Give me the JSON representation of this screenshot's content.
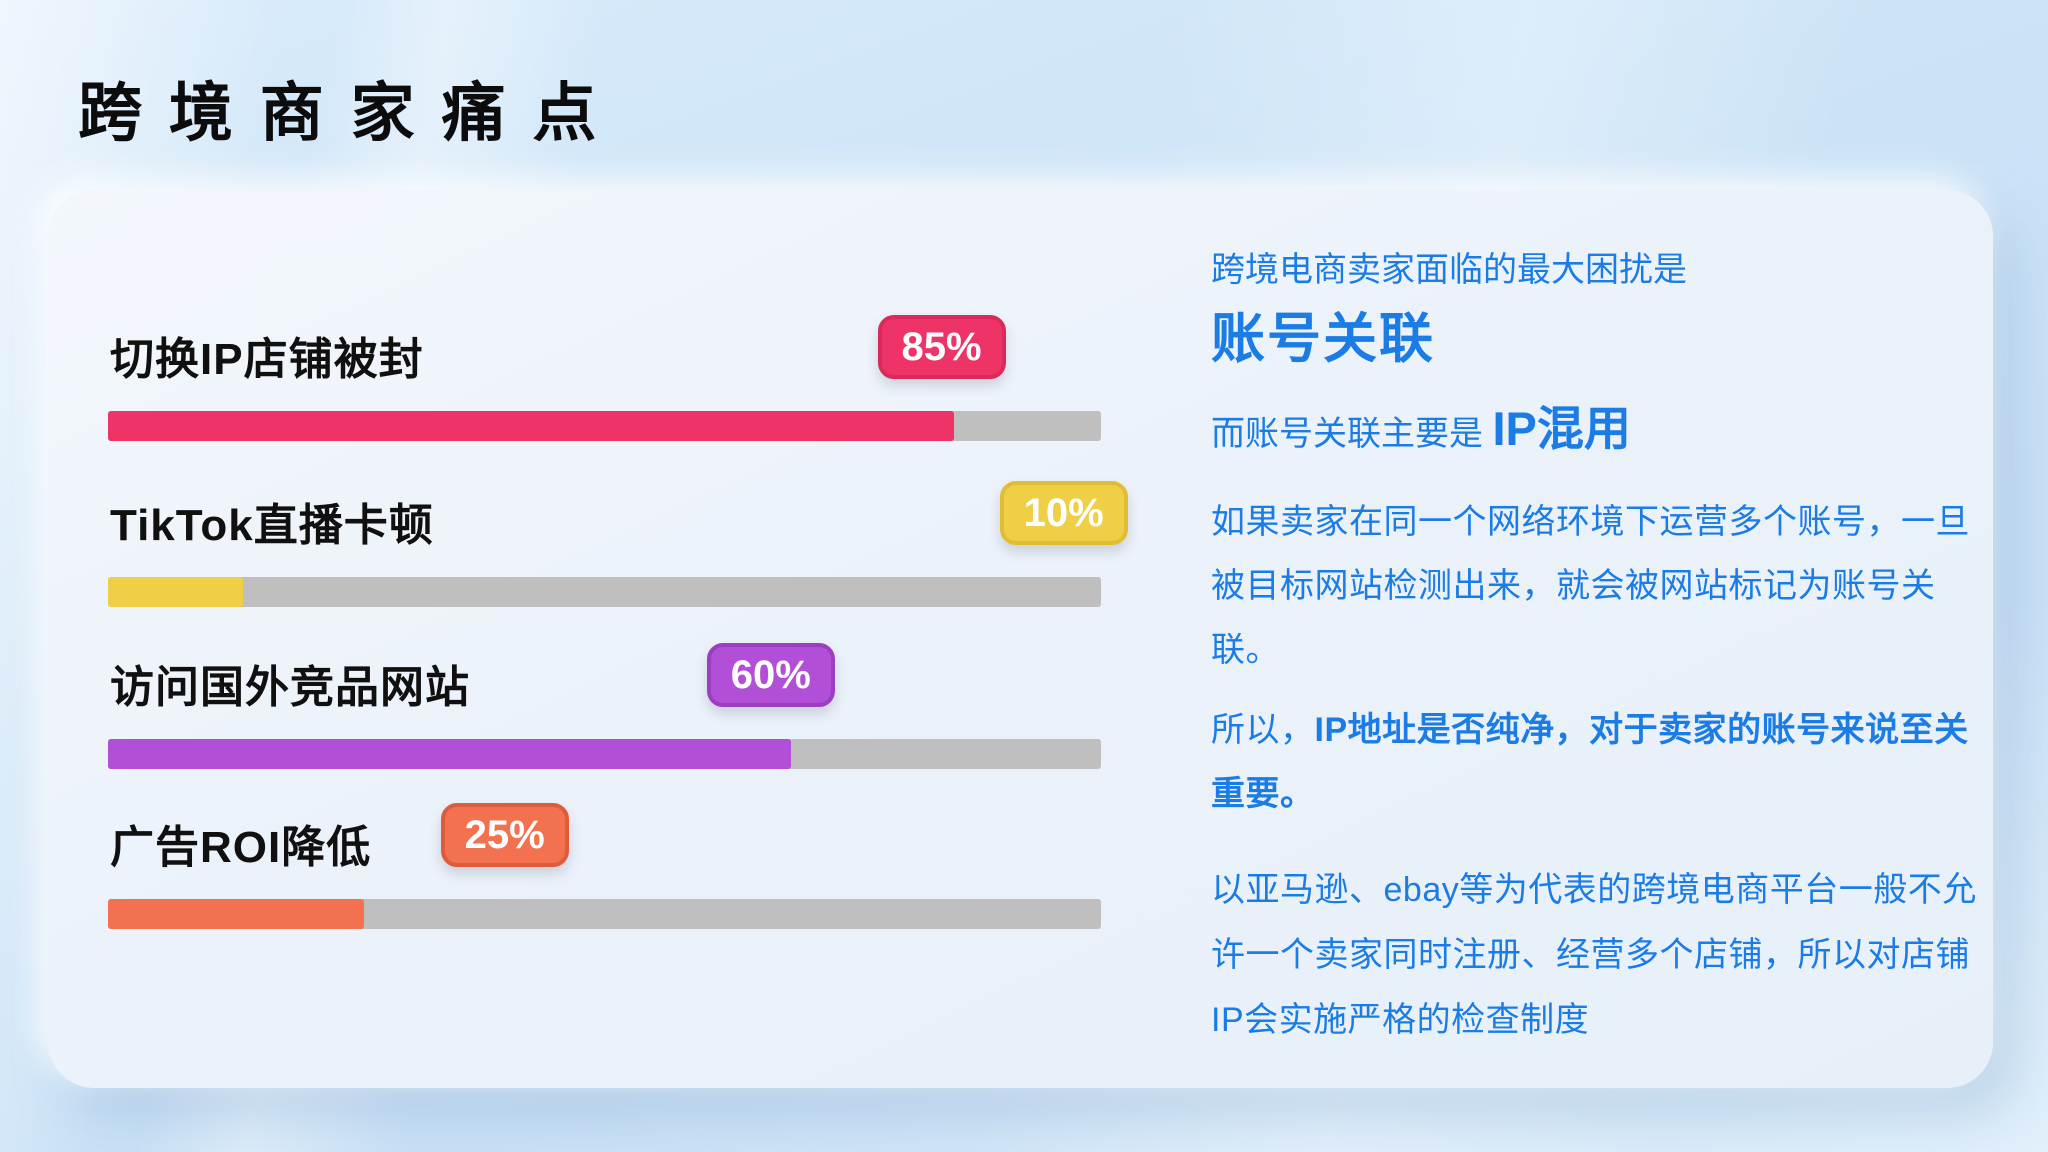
{
  "page": {
    "title": "跨境商家痛点"
  },
  "chart_data": {
    "type": "bar",
    "orientation": "horizontal",
    "categories": [
      "切换IP店铺被封",
      "TikTok直播卡顿",
      "访问国外竞品网站",
      "广告ROI降低"
    ],
    "values": [
      85,
      10,
      60,
      25
    ],
    "value_labels": [
      "85%",
      "10%",
      "60%",
      "25%"
    ],
    "colors": [
      "#ee3467",
      "#efcf45",
      "#b14fd6",
      "#f3714e"
    ],
    "badge_border_colors": [
      "#d92a5b",
      "#e0bd33",
      "#9c3ec2",
      "#de5c3c"
    ],
    "track_color": "#bfbfbf",
    "fill_percents": [
      85.2,
      13.6,
      68.8,
      25.8
    ],
    "badge_left_percents": [
      77.5,
      89.8,
      60.3,
      33.5
    ],
    "xlim": [
      0,
      100
    ],
    "grid": false,
    "legend": false
  },
  "right_panel": {
    "text_color": "#1b7ce6",
    "intro": "跨境电商卖家面临的最大困扰是",
    "headline": "账号关联",
    "line3_prefix": "而账号关联主要是 ",
    "line3_highlight": "IP混用",
    "para1": "如果卖家在同一个网络环境下运营多个账号，一旦被目标网站检测出来，就会被网站标记为账号关联。",
    "para2_prefix": "所以，",
    "para2_bold": "IP地址是否纯净，对于卖家的账号来说至关重要。",
    "para3": "以亚马逊、ebay等为代表的跨境电商平台一般不允许一个卖家同时注册、经营多个店铺，所以对店铺IP会实施严格的检查制度"
  }
}
